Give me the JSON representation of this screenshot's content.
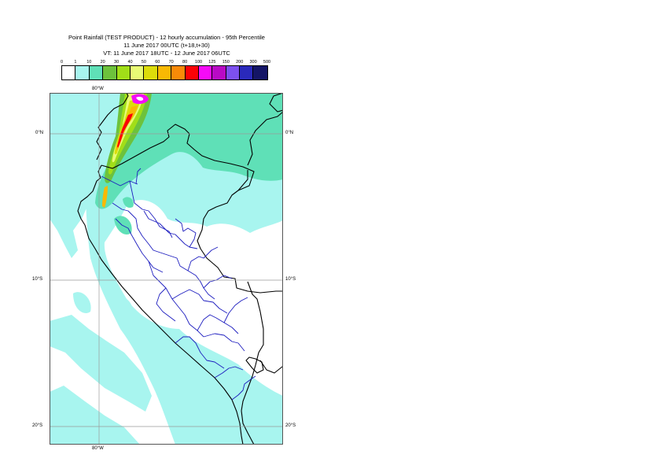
{
  "title": {
    "line1": "Point Rainfall (TEST PRODUCT) - 12 hourly accumulation - 95th Percentile",
    "line2": "11 June 2017 00UTC (t+18,t+30)",
    "line3": "VT: 11 June 2017 18UTC - 12 June 2017 06UTC"
  },
  "legend": {
    "ticks": [
      "0",
      "1",
      "10",
      "20",
      "30",
      "40",
      "50",
      "60",
      "70",
      "80",
      "100",
      "125",
      "150",
      "200",
      "300",
      "500"
    ],
    "colors": [
      "#ffffff",
      "#a8f5ef",
      "#5fe0b7",
      "#6dc23c",
      "#a1de18",
      "#e9fb75",
      "#dcdc0a",
      "#f8b904",
      "#f98a08",
      "#fb0206",
      "#f50bf7",
      "#b90ac5",
      "#7d50ef",
      "#2a29bb",
      "#141566"
    ]
  },
  "map": {
    "top_lon_label": "80°W",
    "bottom_lon_label": "80°W",
    "lat_labels": [
      "0°N",
      "10°S",
      "20°S"
    ],
    "colors": {
      "ocean_rain": "#a8f5ef",
      "heavy_rain": "#5fe0b7",
      "coast": "#000000",
      "regions": "#1d1dbf",
      "graticule": "#9a9a9a"
    }
  }
}
